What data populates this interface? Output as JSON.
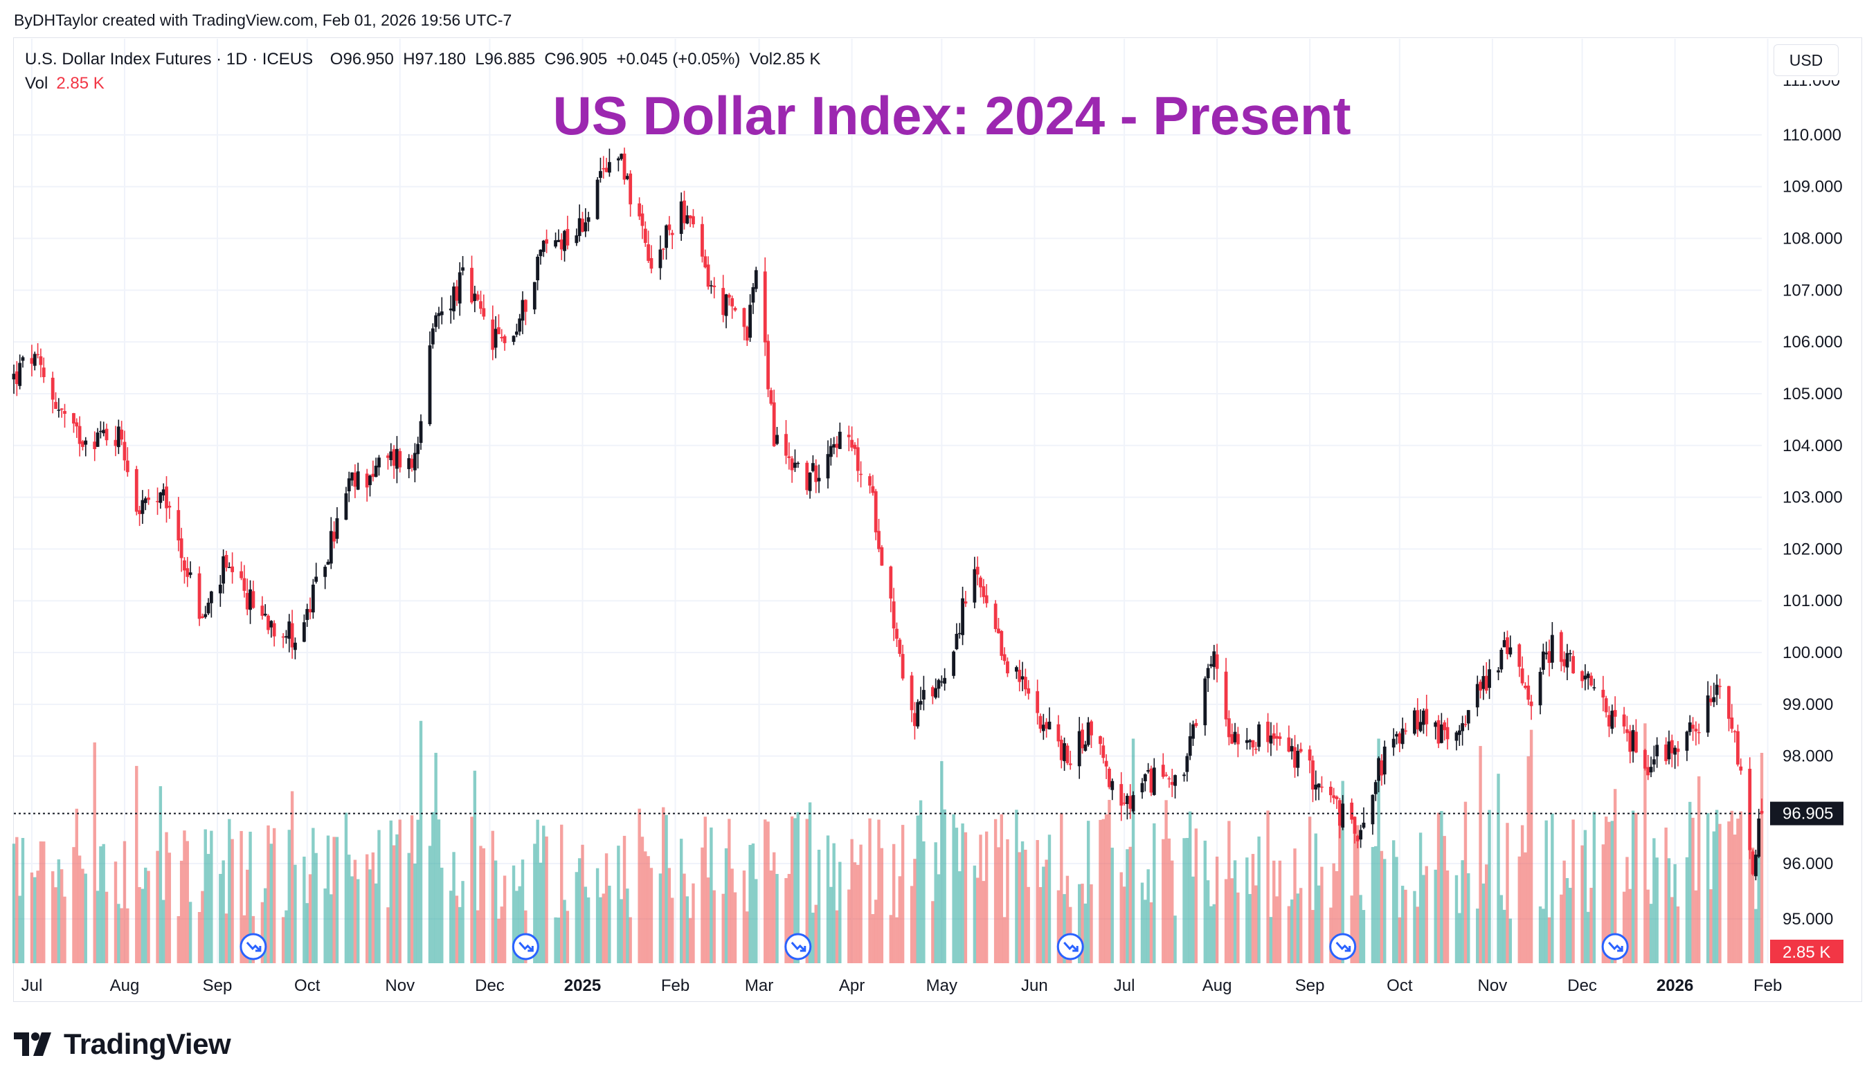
{
  "credit": "ByDHTaylor created with TradingView.com, Feb 01, 2026 19:56 UTC-7",
  "legend": {
    "symbol": "U.S. Dollar Index Futures · 1D · ICEUS",
    "open": "O96.950",
    "high": "H97.180",
    "low": "L96.885",
    "close": "C96.905",
    "change": "+0.045 (+0.05%)",
    "vol": "Vol2.85 K",
    "vol_label": "Vol",
    "vol_value": "2.85 K"
  },
  "currency": "USD",
  "brand": "TradingView",
  "colors": {
    "up": "#131722",
    "down": "#f23645",
    "vol_up": "#26a69a",
    "vol_down": "#ef5350",
    "title": "#9c27b0",
    "event_marker": "#2962ff"
  },
  "chart_data": {
    "type": "candlestick",
    "title": "US Dollar Index: 2024 - Present",
    "timeframe": "1D",
    "x_range": [
      "2024-06-25",
      "2026-01-30"
    ],
    "x_ticks": [
      {
        "date": "2024-07-01",
        "label": "Jul",
        "bold": false
      },
      {
        "date": "2024-08-01",
        "label": "Aug",
        "bold": false
      },
      {
        "date": "2024-09-01",
        "label": "Sep",
        "bold": false
      },
      {
        "date": "2024-10-01",
        "label": "Oct",
        "bold": false
      },
      {
        "date": "2024-11-01",
        "label": "Nov",
        "bold": false
      },
      {
        "date": "2024-12-01",
        "label": "Dec",
        "bold": false
      },
      {
        "date": "2025-01-01",
        "label": "2025",
        "bold": true
      },
      {
        "date": "2025-02-01",
        "label": "Feb",
        "bold": false
      },
      {
        "date": "2025-03-01",
        "label": "Mar",
        "bold": false
      },
      {
        "date": "2025-04-01",
        "label": "Apr",
        "bold": false
      },
      {
        "date": "2025-05-01",
        "label": "May",
        "bold": false
      },
      {
        "date": "2025-06-01",
        "label": "Jun",
        "bold": false
      },
      {
        "date": "2025-07-01",
        "label": "Jul",
        "bold": false
      },
      {
        "date": "2025-08-01",
        "label": "Aug",
        "bold": false
      },
      {
        "date": "2025-09-01",
        "label": "Sep",
        "bold": false
      },
      {
        "date": "2025-10-01",
        "label": "Oct",
        "bold": false
      },
      {
        "date": "2025-11-01",
        "label": "Nov",
        "bold": false
      },
      {
        "date": "2025-12-01",
        "label": "Dec",
        "bold": false
      },
      {
        "date": "2026-01-01",
        "label": "2026",
        "bold": true
      },
      {
        "date": "2026-02-01",
        "label": "Feb",
        "bold": false
      }
    ],
    "y_ticks": [
      "110.000",
      "109.000",
      "108.000",
      "107.000",
      "106.000",
      "105.000",
      "104.000",
      "103.000",
      "102.000",
      "101.000",
      "100.000",
      "99.000",
      "98.000",
      "96.000",
      "95.000"
    ],
    "price_axis": {
      "label_values": [
        110,
        109,
        108,
        107,
        106,
        105,
        104,
        103,
        102,
        101,
        100,
        99,
        98,
        96,
        95
      ],
      "upper_range": [
        97.1,
        110.6
      ],
      "lower_range": [
        94.2,
        97.1
      ],
      "break_at": 97.1
    },
    "last_price": {
      "value": 96.905,
      "label": "96.905"
    },
    "last_volume_label": "2.85 K",
    "volume_axis_max": 3000,
    "price_path": [
      {
        "date": "2024-06-25",
        "close": 105.3
      },
      {
        "date": "2024-07-01",
        "close": 105.7
      },
      {
        "date": "2024-07-15",
        "close": 104.2
      },
      {
        "date": "2024-07-31",
        "close": 104.2
      },
      {
        "date": "2024-08-05",
        "close": 102.8
      },
      {
        "date": "2024-08-15",
        "close": 102.9
      },
      {
        "date": "2024-08-27",
        "close": 100.6
      },
      {
        "date": "2024-09-03",
        "close": 101.6
      },
      {
        "date": "2024-09-10",
        "close": 101.1
      },
      {
        "date": "2024-09-17",
        "close": 100.7
      },
      {
        "date": "2024-09-27",
        "close": 100.3
      },
      {
        "date": "2024-10-01",
        "close": 100.7
      },
      {
        "date": "2024-10-15",
        "close": 103.2
      },
      {
        "date": "2024-10-31",
        "close": 103.8
      },
      {
        "date": "2024-11-05",
        "close": 103.6
      },
      {
        "date": "2024-11-13",
        "close": 106.4
      },
      {
        "date": "2024-11-22",
        "close": 107.2
      },
      {
        "date": "2024-12-02",
        "close": 106.0
      },
      {
        "date": "2024-12-10",
        "close": 106.2
      },
      {
        "date": "2024-12-18",
        "close": 107.8
      },
      {
        "date": "2024-12-31",
        "close": 108.2
      },
      {
        "date": "2025-01-13",
        "close": 109.8
      },
      {
        "date": "2025-01-24",
        "close": 107.3
      },
      {
        "date": "2025-02-03",
        "close": 108.7
      },
      {
        "date": "2025-02-14",
        "close": 106.9
      },
      {
        "date": "2025-02-25",
        "close": 106.3
      },
      {
        "date": "2025-02-28",
        "close": 107.4
      },
      {
        "date": "2025-03-06",
        "close": 104.1
      },
      {
        "date": "2025-03-18",
        "close": 103.3
      },
      {
        "date": "2025-03-26",
        "close": 104.2
      },
      {
        "date": "2025-04-01",
        "close": 103.9
      },
      {
        "date": "2025-04-08",
        "close": 102.9
      },
      {
        "date": "2025-04-21",
        "close": 98.7
      },
      {
        "date": "2025-05-01",
        "close": 99.5
      },
      {
        "date": "2025-05-12",
        "close": 101.5
      },
      {
        "date": "2025-05-20",
        "close": 100.1
      },
      {
        "date": "2025-06-02",
        "close": 98.9
      },
      {
        "date": "2025-06-12",
        "close": 97.9
      },
      {
        "date": "2025-06-20",
        "close": 98.6
      },
      {
        "date": "2025-06-30",
        "close": 96.9
      },
      {
        "date": "2025-07-11",
        "close": 97.6
      },
      {
        "date": "2025-07-21",
        "close": 97.7
      },
      {
        "date": "2025-07-31",
        "close": 99.9
      },
      {
        "date": "2025-08-05",
        "close": 98.5
      },
      {
        "date": "2025-08-21",
        "close": 98.3
      },
      {
        "date": "2025-09-01",
        "close": 97.7
      },
      {
        "date": "2025-09-16",
        "close": 96.5
      },
      {
        "date": "2025-09-25",
        "close": 97.9
      },
      {
        "date": "2025-10-08",
        "close": 98.8
      },
      {
        "date": "2025-10-17",
        "close": 98.3
      },
      {
        "date": "2025-10-31",
        "close": 99.6
      },
      {
        "date": "2025-11-05",
        "close": 100.1
      },
      {
        "date": "2025-11-14",
        "close": 99.2
      },
      {
        "date": "2025-11-21",
        "close": 100.2
      },
      {
        "date": "2025-12-02",
        "close": 99.4
      },
      {
        "date": "2025-12-10",
        "close": 98.8
      },
      {
        "date": "2025-12-23",
        "close": 97.9
      },
      {
        "date": "2026-01-05",
        "close": 98.4
      },
      {
        "date": "2026-01-16",
        "close": 99.2
      },
      {
        "date": "2026-01-21",
        "close": 98.3
      },
      {
        "date": "2026-01-27",
        "close": 95.9
      },
      {
        "date": "2026-01-30",
        "close": 96.905
      }
    ],
    "event_markers": [
      "2024-09-13",
      "2024-12-13",
      "2025-03-14",
      "2025-06-13",
      "2025-09-12",
      "2025-12-12"
    ]
  }
}
